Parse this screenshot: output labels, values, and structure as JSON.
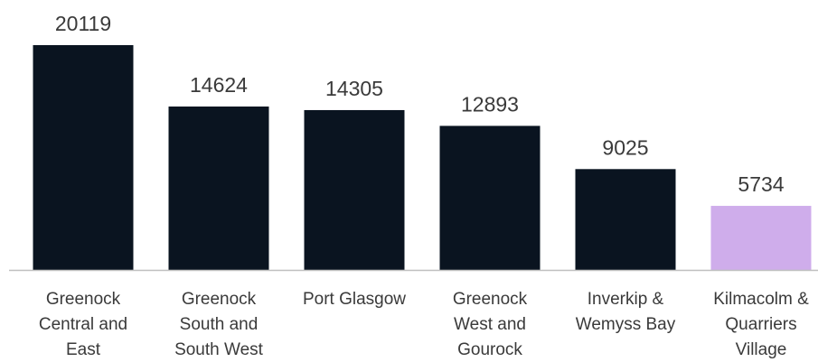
{
  "chart_data": {
    "type": "bar",
    "title": "",
    "xlabel": "",
    "ylabel": "",
    "categories": [
      [
        "Greenock",
        "Central and",
        "East"
      ],
      [
        "Greenock",
        "South and",
        "South West"
      ],
      [
        "Port Glasgow"
      ],
      [
        "Greenock",
        "West and",
        "Gourock"
      ],
      [
        "Inverkip &",
        "Wemyss Bay"
      ],
      [
        "Kilmacolm &",
        "Quarriers",
        "Village"
      ]
    ],
    "values": [
      20119,
      14624,
      14305,
      12893,
      9025,
      5734
    ],
    "value_labels": [
      "20119",
      "14624",
      "14305",
      "12893",
      "9025",
      "5734"
    ],
    "colors": [
      "#0a1420",
      "#0a1420",
      "#0a1420",
      "#0a1420",
      "#0a1420",
      "#cfadeb"
    ],
    "ylim": [
      0,
      20119
    ],
    "grid": false,
    "legend": "none",
    "data_labels": "above"
  }
}
